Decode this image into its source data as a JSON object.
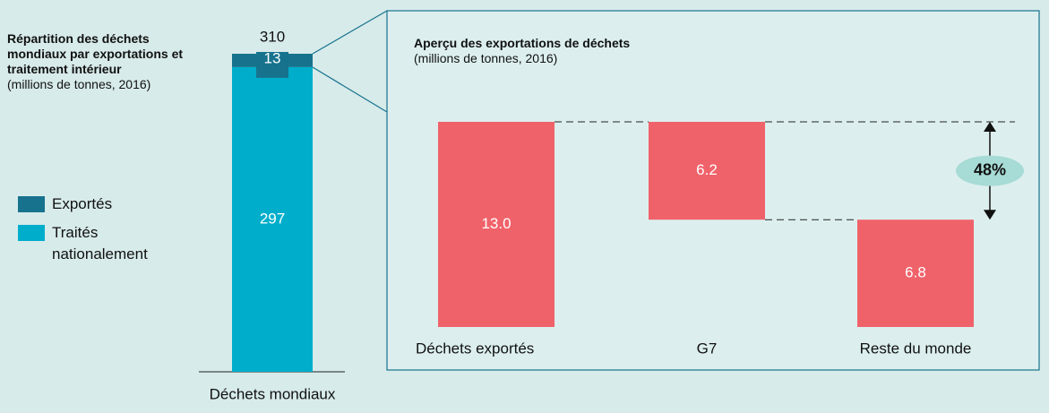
{
  "chart_data": [
    {
      "type": "stacked_bar",
      "title": "Répartition des déchets mondiaux par exportations et traitement intérieur",
      "subtitle": "(millions de tonnes, 2016)",
      "categories": [
        "Déchets mondiaux"
      ],
      "series": [
        {
          "name": "Exportés",
          "color": "#17728e",
          "values": [
            13
          ]
        },
        {
          "name": "Traités nationalement",
          "color": "#00aecb",
          "values": [
            297
          ]
        }
      ],
      "totals": [
        310
      ]
    },
    {
      "type": "waterfall",
      "title": "Aperçu des exportations de déchets",
      "subtitle": "(millions de tonnes, 2016)",
      "categories": [
        "Déchets exportés",
        "G7",
        "Reste du monde"
      ],
      "values": [
        13.0,
        6.2,
        6.8
      ],
      "value_labels": [
        "13.0",
        "6.2",
        "6.8"
      ],
      "color": "#f0626a",
      "annotation": "48%"
    }
  ]
}
